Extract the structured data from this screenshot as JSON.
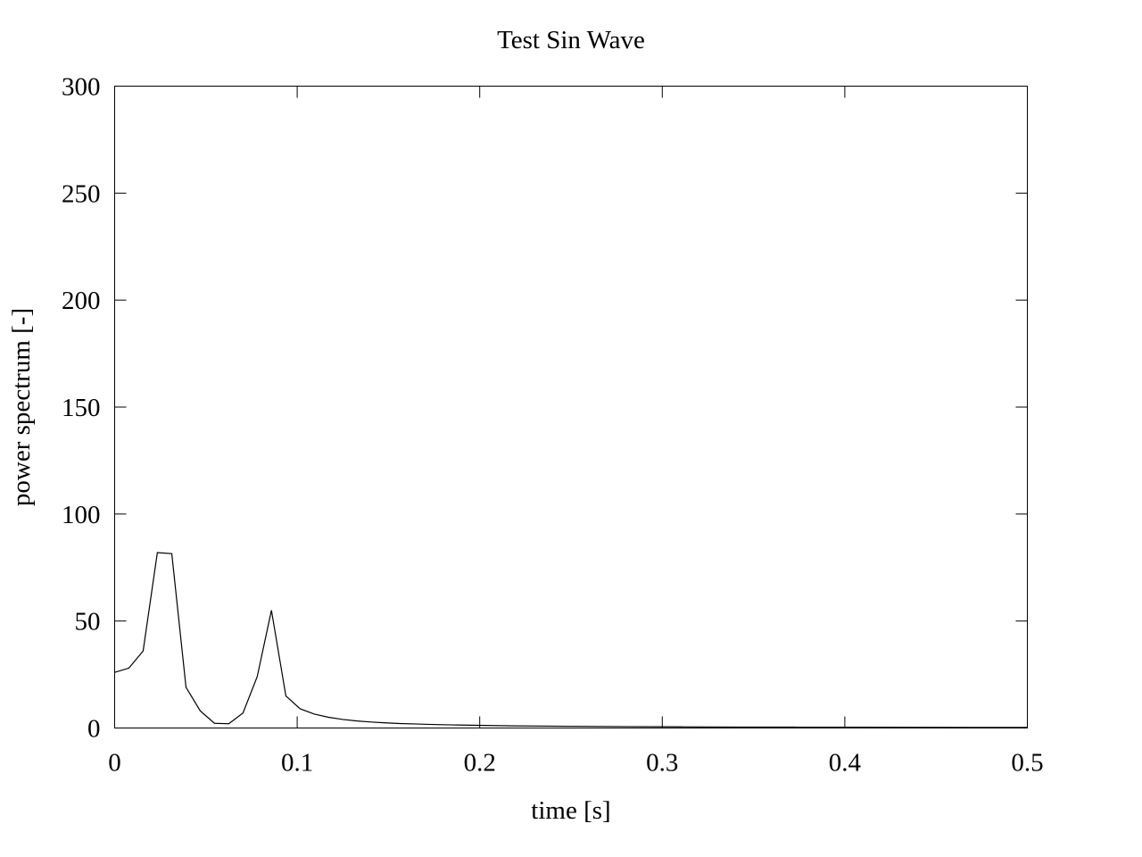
{
  "chart_data": {
    "type": "line",
    "title": "Test Sin Wave",
    "xlabel": "time [s]",
    "ylabel": "power spectrum [-]",
    "xlim": [
      0,
      0.5
    ],
    "ylim": [
      0,
      300
    ],
    "xticks": [
      "0",
      "0.1",
      "0.2",
      "0.3",
      "0.4",
      "0.5"
    ],
    "yticks": [
      "0",
      "50",
      "100",
      "150",
      "200",
      "250",
      "300"
    ],
    "grid": false,
    "legend": "none",
    "line_color": "#000000",
    "series": [
      {
        "x": [
          0,
          0.0078,
          0.0156,
          0.0234,
          0.0313,
          0.0391,
          0.0469,
          0.0547,
          0.0625,
          0.0703,
          0.0781,
          0.0859,
          0.0938,
          0.1016,
          0.1094,
          0.1172,
          0.125,
          0.1328,
          0.1406,
          0.1484,
          0.1563,
          0.1641,
          0.1719,
          0.1797,
          0.1875,
          0.1953,
          0.2031,
          0.2109,
          0.2188,
          0.25,
          0.2813,
          0.3125,
          0.3438,
          0.375,
          0.4063,
          0.4375,
          0.4688,
          0.5
        ],
        "y": [
          26,
          28,
          36,
          82,
          81.5,
          19,
          8,
          2.2,
          2,
          7,
          24,
          55,
          15,
          9,
          6.5,
          5,
          4,
          3.3,
          2.8,
          2.4,
          2.1,
          1.9,
          1.7,
          1.55,
          1.4,
          1.3,
          1.2,
          1.1,
          1.0,
          0.8,
          0.65,
          0.55,
          0.45,
          0.4,
          0.35,
          0.3,
          0.27,
          0.25
        ]
      }
    ]
  }
}
